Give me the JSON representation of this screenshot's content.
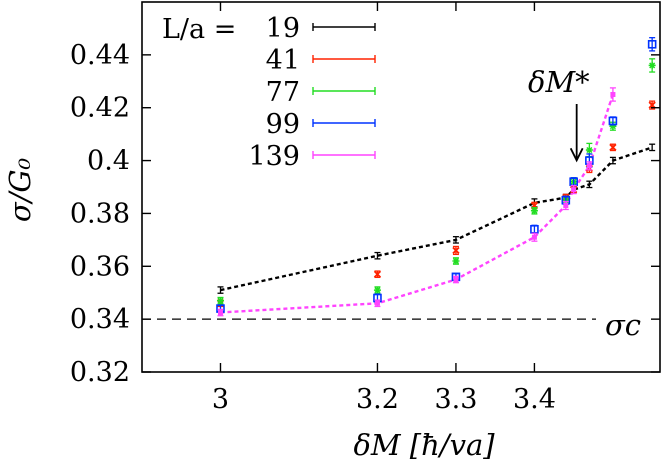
{
  "chart_data": {
    "type": "scatter",
    "xlabel": "δM [ħ/va]",
    "ylabel": "σ/G₀",
    "xlim": [
      2.9,
      3.56
    ],
    "ylim": [
      0.32,
      0.46
    ],
    "xticks": [
      {
        "value": 3,
        "label": "3"
      },
      {
        "value": 3.2,
        "label": "3.2"
      },
      {
        "value": 3.3,
        "label": "3.3"
      },
      {
        "value": 3.4,
        "label": "3.4"
      }
    ],
    "yticks": [
      {
        "value": 0.32,
        "label": "0.32"
      },
      {
        "value": 0.34,
        "label": "0.34"
      },
      {
        "value": 0.36,
        "label": "0.36"
      },
      {
        "value": 0.38,
        "label": "0.38"
      },
      {
        "value": 0.4,
        "label": "0.4"
      },
      {
        "value": 0.42,
        "label": "0.42"
      },
      {
        "value": 0.44,
        "label": "0.44"
      }
    ],
    "legend_title": "L/a =",
    "legend_position": "top-left",
    "series": [
      {
        "name": "19",
        "color": "#000000",
        "marker": "bar",
        "line": true,
        "x": [
          3,
          3.2,
          3.3,
          3.4,
          3.44,
          3.45,
          3.47,
          3.5,
          3.55
        ],
        "y": [
          0.351,
          0.364,
          0.37,
          0.384,
          0.386,
          0.389,
          0.391,
          0.4,
          0.405
        ],
        "err": [
          0.0012,
          0.0012,
          0.0012,
          0.0015,
          0.0012,
          0.0012,
          0.0012,
          0.0012,
          0.0012
        ]
      },
      {
        "name": "41",
        "color": "#ff2200",
        "marker": "x",
        "line": false,
        "x": [
          3,
          3.2,
          3.3,
          3.4,
          3.44,
          3.45,
          3.47,
          3.5,
          3.55
        ],
        "y": [
          0.346,
          0.357,
          0.366,
          0.383,
          0.386,
          0.389,
          0.397,
          0.405,
          0.421
        ],
        "err": [
          0.0012,
          0.0012,
          0.0015,
          0.0012,
          0.0012,
          0.0012,
          0.0015,
          0.0012,
          0.0015
        ]
      },
      {
        "name": "77",
        "color": "#22dd22",
        "marker": "star",
        "line": false,
        "x": [
          3,
          3.2,
          3.3,
          3.4,
          3.44,
          3.45,
          3.47,
          3.5,
          3.55
        ],
        "y": [
          0.347,
          0.351,
          0.362,
          0.381,
          0.385,
          0.392,
          0.404,
          0.413,
          0.436
        ],
        "err": [
          0.0012,
          0.0012,
          0.0012,
          0.0012,
          0.0015,
          0.0015,
          0.0025,
          0.0015,
          0.0025
        ]
      },
      {
        "name": "99",
        "color": "#0033ff",
        "marker": "square",
        "line": false,
        "x": [
          3,
          3.2,
          3.3,
          3.4,
          3.44,
          3.45,
          3.47,
          3.5,
          3.55
        ],
        "y": [
          0.344,
          0.348,
          0.356,
          0.374,
          0.385,
          0.392,
          0.4,
          0.415,
          0.444
        ],
        "err": [
          0.0012,
          0.0015,
          0.0012,
          0.0015,
          0.0015,
          0.0015,
          0.0025,
          0.0015,
          0.0025
        ]
      },
      {
        "name": "139",
        "color": "#ff44ff",
        "marker": "dot",
        "line": true,
        "x": [
          3,
          3.2,
          3.3,
          3.4,
          3.44,
          3.45,
          3.47,
          3.5
        ],
        "y": [
          0.3425,
          0.346,
          0.355,
          0.371,
          0.383,
          0.389,
          0.398,
          0.425
        ],
        "err": [
          0.0012,
          0.0012,
          0.0012,
          0.0015,
          0.0015,
          0.0015,
          0.0015,
          0.0025
        ]
      }
    ],
    "hline": {
      "value": 0.34,
      "label": "σc"
    },
    "annotation": {
      "label": "δM*",
      "x": 3.45,
      "y_tip": 0.3895
    }
  }
}
